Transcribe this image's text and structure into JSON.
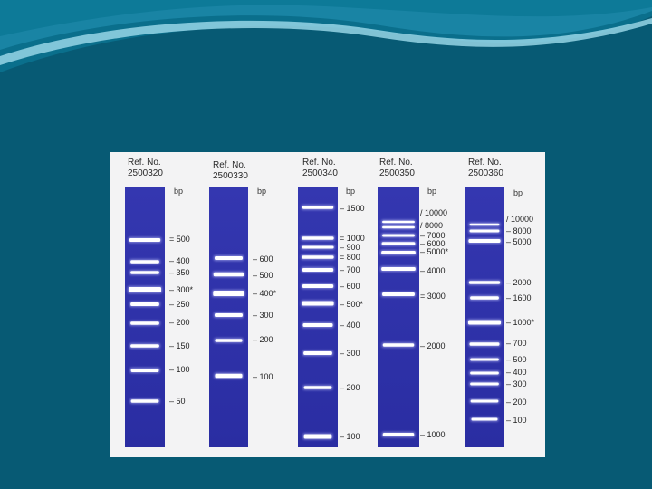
{
  "lanes": [
    {
      "ref_label": "Ref. No.",
      "ref_number": "2500320",
      "unit": "bp",
      "markers": [
        "500",
        "400",
        "350",
        "300*",
        "250",
        "200",
        "150",
        "100",
        "50"
      ],
      "marker_style": [
        "=",
        "–",
        "–",
        "–",
        "–",
        "–",
        "–",
        "–",
        "–"
      ]
    },
    {
      "ref_label": "Ref. No.",
      "ref_number": "2500330",
      "unit": "bp",
      "markers": [
        "600",
        "500",
        "400*",
        "300",
        "200",
        "100"
      ],
      "marker_style": [
        "–",
        "–",
        "–",
        "–",
        "–",
        "–"
      ]
    },
    {
      "ref_label": "Ref. No.",
      "ref_number": "2500340",
      "unit": "bp",
      "markers": [
        "1500",
        "1000",
        "900",
        "800",
        "700",
        "600",
        "500*",
        "400",
        "300",
        "200",
        "100"
      ],
      "marker_style": [
        "–",
        "=",
        "–",
        "=",
        "–",
        "–",
        "–",
        "–",
        "–",
        "–",
        "–"
      ]
    },
    {
      "ref_label": "Ref. No.",
      "ref_number": "2500350",
      "unit": "bp",
      "markers": [
        "10000",
        "8000",
        "7000",
        "6000",
        "5000*",
        "4000",
        "3000",
        "2000",
        "1000"
      ],
      "marker_style": [
        "/",
        "/",
        "–",
        "–",
        "–",
        "–",
        "=",
        "–",
        "–"
      ]
    },
    {
      "ref_label": "Ref. No.",
      "ref_number": "2500360",
      "unit": "bp",
      "markers": [
        "10000",
        "8000",
        "5000",
        "2000",
        "1600",
        "1000*",
        "700",
        "500",
        "400",
        "300",
        "200",
        "100"
      ],
      "marker_style": [
        "/",
        "–",
        "–",
        "–",
        "–",
        "–",
        "–",
        "–",
        "–",
        "–",
        "–",
        "–"
      ]
    }
  ],
  "colors": {
    "slide_background": "#075a74",
    "wave_light": "#8fd3e6",
    "wave_mid": "#1d8fae",
    "panel": "#f3f3f4",
    "gel_blue": "#2b2fa8",
    "band": "#ffffff"
  }
}
